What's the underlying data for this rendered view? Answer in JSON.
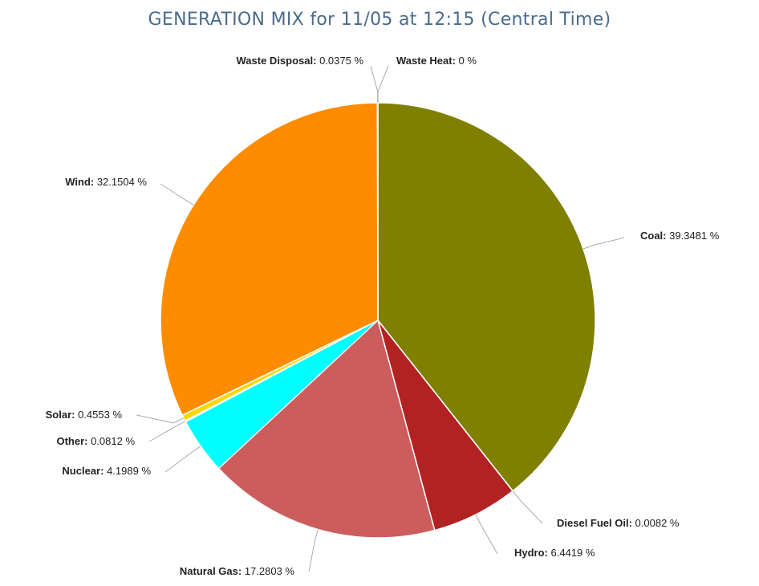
{
  "chart_data": {
    "type": "pie",
    "title": "GENERATION MIX for 11/05 at 12:15 (Central Time)",
    "value_suffix": " %",
    "slices": [
      {
        "name": "Waste Heat",
        "value": 0,
        "value_text": "0",
        "color": "#9e9e9e"
      },
      {
        "name": "Coal",
        "value": 39.3481,
        "value_text": "39.3481",
        "color": "#7f7f00"
      },
      {
        "name": "Diesel Fuel Oil",
        "value": 0.0082,
        "value_text": "0.0082",
        "color": "#7a1f1f"
      },
      {
        "name": "Hydro",
        "value": 6.4419,
        "value_text": "6.4419",
        "color": "#b22222"
      },
      {
        "name": "Natural Gas",
        "value": 17.2803,
        "value_text": "17.2803",
        "color": "#cd5c5c"
      },
      {
        "name": "Nuclear",
        "value": 4.1989,
        "value_text": "4.1989",
        "color": "#00ffff"
      },
      {
        "name": "Other",
        "value": 0.0812,
        "value_text": "0.0812",
        "color": "#5a9bd5"
      },
      {
        "name": "Solar",
        "value": 0.4553,
        "value_text": "0.4553",
        "color": "#ffd700"
      },
      {
        "name": "Wind",
        "value": 32.1504,
        "value_text": "32.1504",
        "color": "#ff8c00"
      },
      {
        "name": "Waste Disposal",
        "value": 0.0375,
        "value_text": "0.0375",
        "color": "#8b4513"
      }
    ]
  }
}
